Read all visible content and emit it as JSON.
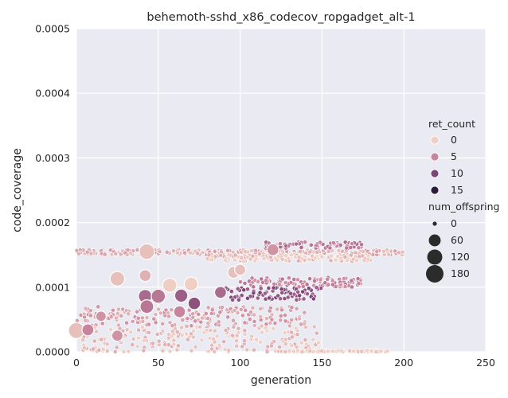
{
  "chart_data": {
    "type": "scatter",
    "title": "behemoth-sshd_x86_codecov_ropgadget_alt-1",
    "xlabel": "generation",
    "ylabel": "code_coverage",
    "xlim": [
      0,
      250
    ],
    "ylim": [
      0,
      0.0005
    ],
    "x_ticks": [
      "0",
      "50",
      "100",
      "150",
      "200",
      "250"
    ],
    "y_ticks": [
      "0.0000",
      "0.0001",
      "0.0002",
      "0.0003",
      "0.0004",
      "0.0005"
    ],
    "grid": true,
    "background": "#eaeaf2",
    "legend_position": "right",
    "hue_legend": {
      "title": "ret_count",
      "items": [
        {
          "label": "0",
          "color": "#efcfc4"
        },
        {
          "label": "5",
          "color": "#c7849c"
        },
        {
          "label": "10",
          "color": "#7d4577"
        },
        {
          "label": "15",
          "color": "#2e1a3d"
        }
      ]
    },
    "size_legend": {
      "title": "num_offspring",
      "items": [
        {
          "label": "0",
          "value": 0
        },
        {
          "label": "60",
          "value": 60
        },
        {
          "label": "120",
          "value": 120
        },
        {
          "label": "180",
          "value": 180
        }
      ]
    },
    "highlight_points": [
      {
        "x": 43,
        "y": 0.000155,
        "ret_count": 1,
        "num_offspring": 130
      },
      {
        "x": 25,
        "y": 0.000113,
        "ret_count": 1,
        "num_offspring": 110
      },
      {
        "x": 42,
        "y": 0.000118,
        "ret_count": 2,
        "num_offspring": 60
      },
      {
        "x": 0,
        "y": 3.3e-05,
        "ret_count": 1,
        "num_offspring": 140
      },
      {
        "x": 57,
        "y": 0.000103,
        "ret_count": 0,
        "num_offspring": 100
      },
      {
        "x": 70,
        "y": 0.000105,
        "ret_count": 0,
        "num_offspring": 90
      },
      {
        "x": 42,
        "y": 8.6e-05,
        "ret_count": 7,
        "num_offspring": 90
      },
      {
        "x": 50,
        "y": 8.6e-05,
        "ret_count": 6,
        "num_offspring": 100
      },
      {
        "x": 64,
        "y": 8.7e-05,
        "ret_count": 8,
        "num_offspring": 80
      },
      {
        "x": 72,
        "y": 7.5e-05,
        "ret_count": 9,
        "num_offspring": 70
      },
      {
        "x": 88,
        "y": 9.2e-05,
        "ret_count": 7,
        "num_offspring": 60
      },
      {
        "x": 96,
        "y": 0.000123,
        "ret_count": 1,
        "num_offspring": 60
      },
      {
        "x": 100,
        "y": 0.000127,
        "ret_count": 1,
        "num_offspring": 50
      },
      {
        "x": 120,
        "y": 0.000158,
        "ret_count": 4,
        "num_offspring": 60
      },
      {
        "x": 7,
        "y": 3.4e-05,
        "ret_count": 5,
        "num_offspring": 60
      },
      {
        "x": 43,
        "y": 7e-05,
        "ret_count": 6,
        "num_offspring": 90
      },
      {
        "x": 25,
        "y": 2.5e-05,
        "ret_count": 4,
        "num_offspring": 50
      },
      {
        "x": 15,
        "y": 5.5e-05,
        "ret_count": 4,
        "num_offspring": 40
      },
      {
        "x": 63,
        "y": 6.2e-05,
        "ret_count": 5,
        "num_offspring": 60
      }
    ],
    "clusters": [
      {
        "x": [
          0,
          200
        ],
        "y": [
          0.00015,
          0.000158
        ],
        "ret_count": 2
      },
      {
        "x": [
          115,
          175
        ],
        "y": [
          0.00016,
          0.00017
        ],
        "ret_count": 6
      },
      {
        "x": [
          80,
          180
        ],
        "y": [
          0.00014,
          0.00015
        ],
        "ret_count": 1
      },
      {
        "x": [
          100,
          175
        ],
        "y": [
          0.0001,
          0.000115
        ],
        "ret_count": 5
      },
      {
        "x": [
          90,
          150
        ],
        "y": [
          8e-05,
          0.0001
        ],
        "ret_count": 9
      },
      {
        "x": [
          0,
          140
        ],
        "y": [
          4e-05,
          7e-05
        ],
        "ret_count": 3
      },
      {
        "x": [
          0,
          150
        ],
        "y": [
          0.0,
          4e-05
        ],
        "ret_count": 1
      },
      {
        "x": [
          120,
          190
        ],
        "y": [
          0.0,
          2e-06
        ],
        "ret_count": 0
      }
    ]
  }
}
